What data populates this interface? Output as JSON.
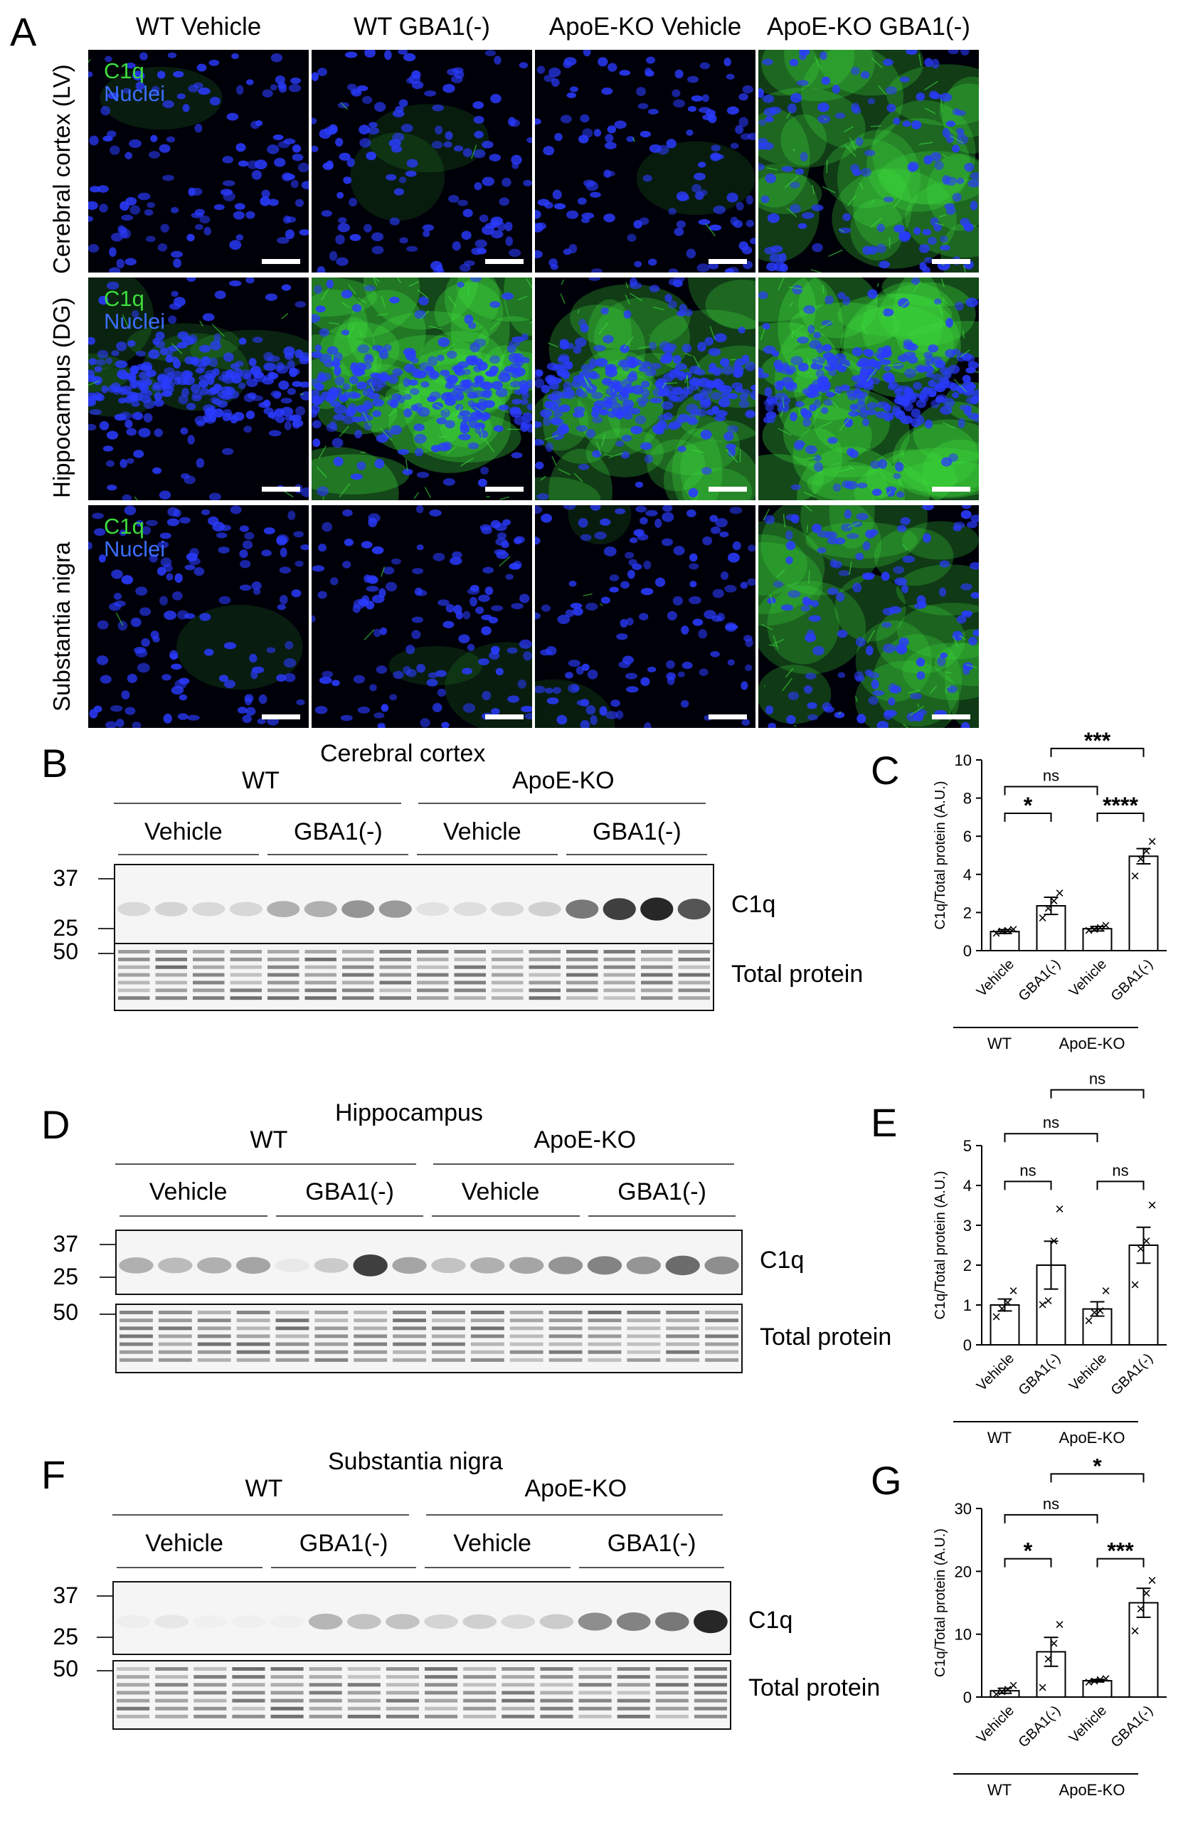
{
  "panel_a": {
    "letter": "A",
    "columns": [
      "WT Vehicle",
      "WT GBA1(-)",
      "ApoE-KO Vehicle",
      "ApoE-KO GBA1(-)"
    ],
    "rows": [
      "Cerebral cortex (LV)",
      "Hippocampus (DG)",
      "Substantia nigra"
    ],
    "marker_green": "C1q",
    "marker_blue": "Nuclei",
    "green_level": [
      [
        0.02,
        0.04,
        0.03,
        0.6
      ],
      [
        0.15,
        0.8,
        0.6,
        0.85
      ],
      [
        0.02,
        0.05,
        0.04,
        0.55
      ]
    ],
    "colors": {
      "green": "#3ddc3d",
      "blue": "#2a3bff",
      "background": "#000008"
    }
  },
  "blots": [
    {
      "letter": "B",
      "region": "Cerebral cortex",
      "groups": [
        "WT",
        "ApoE-KO"
      ],
      "subgroups": [
        "Vehicle",
        "GBA1(-)",
        "Vehicle",
        "GBA1(-)"
      ],
      "mw_top": [
        "37",
        "25"
      ],
      "mw_bottom": "50",
      "band_label": "C1q",
      "total_label": "Total protein",
      "intensities": [
        0.12,
        0.14,
        0.12,
        0.13,
        0.3,
        0.3,
        0.42,
        0.4,
        0.08,
        0.1,
        0.12,
        0.16,
        0.55,
        0.8,
        0.9,
        0.7
      ]
    },
    {
      "letter": "D",
      "region": "Hippocampus",
      "groups": [
        "WT",
        "ApoE-KO"
      ],
      "subgroups": [
        "Vehicle",
        "GBA1(-)",
        "Vehicle",
        "GBA1(-)"
      ],
      "mw_top": [
        "37",
        "25"
      ],
      "mw_bottom": "50",
      "band_label": "C1q",
      "total_label": "Total protein",
      "intensities": [
        0.3,
        0.25,
        0.3,
        0.35,
        0.05,
        0.18,
        0.8,
        0.35,
        0.22,
        0.3,
        0.35,
        0.42,
        0.5,
        0.42,
        0.6,
        0.45
      ]
    },
    {
      "letter": "F",
      "region": "Substantia nigra",
      "groups": [
        "WT",
        "ApoE-KO"
      ],
      "subgroups": [
        "Vehicle",
        "GBA1(-)",
        "Vehicle",
        "GBA1(-)"
      ],
      "mw_top": [
        "37",
        "25"
      ],
      "mw_bottom": "50",
      "band_label": "C1q",
      "total_label": "Total protein",
      "intensities": [
        0.03,
        0.06,
        0.02,
        0.02,
        0.02,
        0.28,
        0.22,
        0.22,
        0.14,
        0.16,
        0.12,
        0.18,
        0.45,
        0.5,
        0.55,
        0.9
      ]
    }
  ],
  "chart_data": [
    {
      "letter": "C",
      "type": "bar",
      "categories": [
        "Vehicle",
        "GBA1(-)",
        "Vehicle",
        "GBA1(-)"
      ],
      "groups": [
        "WT",
        "ApoE-KO"
      ],
      "values": [
        1.0,
        2.35,
        1.15,
        4.95
      ],
      "errors": [
        0.1,
        0.45,
        0.12,
        0.4
      ],
      "points": [
        [
          0.9,
          1.0,
          1.05,
          1.1
        ],
        [
          1.7,
          2.2,
          2.6,
          3.0
        ],
        [
          1.05,
          1.1,
          1.2,
          1.3
        ],
        [
          3.9,
          4.8,
          5.2,
          5.7
        ]
      ],
      "ylabel": "C1q/Total protein (A.U.)",
      "ylim": [
        0,
        10
      ],
      "yticks": [
        0,
        2,
        4,
        6,
        8,
        10
      ],
      "significance": [
        {
          "from": 0,
          "to": 1,
          "label": "*",
          "level": 7.2
        },
        {
          "from": 2,
          "to": 3,
          "label": "****",
          "level": 7.2
        },
        {
          "from": 0,
          "to": 2,
          "label": "ns",
          "level": 8.6
        },
        {
          "from": 1,
          "to": 3,
          "label": "***",
          "level": 10.6
        }
      ]
    },
    {
      "letter": "E",
      "type": "bar",
      "categories": [
        "Vehicle",
        "GBA1(-)",
        "Vehicle",
        "GBA1(-)"
      ],
      "groups": [
        "WT",
        "ApoE-KO"
      ],
      "values": [
        1.0,
        2.0,
        0.9,
        2.5
      ],
      "errors": [
        0.15,
        0.6,
        0.18,
        0.45
      ],
      "points": [
        [
          0.7,
          0.9,
          1.05,
          1.35
        ],
        [
          1.0,
          1.1,
          2.6,
          3.4
        ],
        [
          0.6,
          0.8,
          0.85,
          1.35
        ],
        [
          1.5,
          2.4,
          2.6,
          3.5
        ]
      ],
      "ylabel": "C1q/Total protein (A.U.)",
      "ylim": [
        0,
        5
      ],
      "yticks": [
        0,
        1,
        2,
        3,
        4,
        5
      ],
      "significance": [
        {
          "from": 0,
          "to": 1,
          "label": "ns",
          "level": 4.1
        },
        {
          "from": 2,
          "to": 3,
          "label": "ns",
          "level": 4.1
        },
        {
          "from": 0,
          "to": 2,
          "label": "ns",
          "level": 5.3
        },
        {
          "from": 1,
          "to": 3,
          "label": "ns",
          "level": 6.4
        }
      ]
    },
    {
      "letter": "G",
      "type": "bar",
      "categories": [
        "Vehicle",
        "GBA1(-)",
        "Vehicle",
        "GBA1(-)"
      ],
      "groups": [
        "WT",
        "ApoE-KO"
      ],
      "values": [
        1.0,
        7.2,
        2.6,
        15.0
      ],
      "errors": [
        0.4,
        2.3,
        0.2,
        2.3
      ],
      "points": [
        [
          0.4,
          0.8,
          1.2,
          1.8
        ],
        [
          1.5,
          6.0,
          8.5,
          11.5
        ],
        [
          2.3,
          2.5,
          2.7,
          2.9
        ],
        [
          10.5,
          14.0,
          16.5,
          18.5
        ]
      ],
      "ylabel": "C1q/Total protein (A.U.)",
      "ylim": [
        0,
        30
      ],
      "yticks": [
        0,
        10,
        20,
        30
      ],
      "significance": [
        {
          "from": 0,
          "to": 1,
          "label": "*",
          "level": 22.0
        },
        {
          "from": 2,
          "to": 3,
          "label": "***",
          "level": 22.0
        },
        {
          "from": 0,
          "to": 2,
          "label": "ns",
          "level": 29.0
        },
        {
          "from": 1,
          "to": 3,
          "label": "*",
          "level": 35.5
        }
      ]
    }
  ]
}
